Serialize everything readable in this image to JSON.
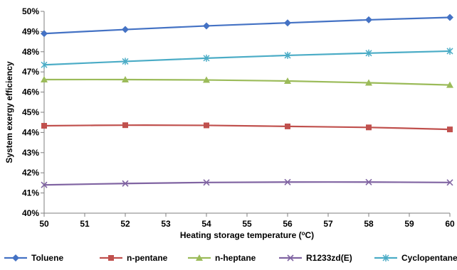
{
  "chart_data": {
    "type": "line",
    "xlabel_main": "Heating storage temperature (",
    "xlabel_sup": "o",
    "xlabel_tail": "C)",
    "ylabel": "System exergy efficiency",
    "x": [
      50,
      52,
      54,
      56,
      58,
      60
    ],
    "x_ticks": [
      "50",
      "51",
      "52",
      "53",
      "54",
      "55",
      "56",
      "57",
      "58",
      "59",
      "60"
    ],
    "y_ticks": [
      "40%",
      "41%",
      "42%",
      "43%",
      "44%",
      "45%",
      "46%",
      "47%",
      "48%",
      "49%",
      "50%"
    ],
    "xlim": [
      50,
      60
    ],
    "ylim": [
      40,
      50
    ],
    "legend_position": "bottom",
    "grid": false,
    "series": [
      {
        "name": "Toluene",
        "color": "#4472c4",
        "marker": "diamond",
        "values": [
          48.9,
          49.1,
          49.28,
          49.43,
          49.58,
          49.7
        ]
      },
      {
        "name": "n-pentane",
        "color": "#c0504d",
        "marker": "square",
        "values": [
          44.33,
          44.36,
          44.35,
          44.3,
          44.25,
          44.15
        ]
      },
      {
        "name": "n-heptane",
        "color": "#9bbb59",
        "marker": "triangle",
        "values": [
          46.62,
          46.62,
          46.6,
          46.55,
          46.46,
          46.35
        ]
      },
      {
        "name": "R1233zd(E)",
        "color": "#8064a2",
        "marker": "x",
        "values": [
          41.4,
          41.47,
          41.52,
          41.54,
          41.54,
          41.52
        ]
      },
      {
        "name": "Cyclopentane",
        "color": "#4bacc6",
        "marker": "asterisk",
        "values": [
          47.35,
          47.52,
          47.68,
          47.82,
          47.93,
          48.03
        ]
      }
    ]
  }
}
